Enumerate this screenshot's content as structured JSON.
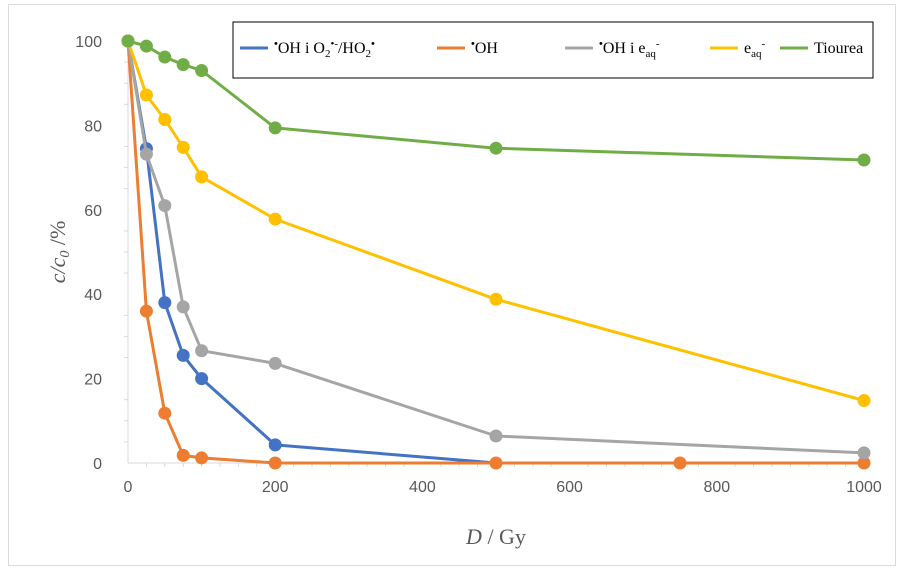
{
  "chart_data": {
    "type": "line",
    "xlabel": {
      "var": "D",
      "rest": " / Gy"
    },
    "ylabel": {
      "var": "c/c",
      "sub": "0",
      "rest": " /%"
    },
    "xlim": [
      0,
      1000
    ],
    "ylim": [
      0,
      100
    ],
    "x_ticks": [
      "0",
      "200",
      "400",
      "600",
      "800",
      "1000"
    ],
    "y_ticks": [
      "0",
      "20",
      "40",
      "60",
      "80",
      "100"
    ],
    "x_tick_values": [
      0,
      200,
      400,
      600,
      800,
      1000
    ],
    "y_tick_values": [
      0,
      20,
      40,
      60,
      80,
      100
    ],
    "grid": false,
    "legend_position": "top-right",
    "series": [
      {
        "name": "•OH i O2•-/HO2•",
        "legend": [
          {
            "t": "•",
            "s": "sup"
          },
          {
            "t": "OH i O",
            "s": ""
          },
          {
            "t": "2",
            "s": "sub"
          },
          {
            "t": "•-",
            "s": "sup"
          },
          {
            "t": "/HO",
            "s": ""
          },
          {
            "t": "2",
            "s": "sub"
          },
          {
            "t": "•",
            "s": "sup"
          }
        ],
        "color": "#4472C4",
        "x": [
          0,
          25,
          50,
          75,
          100,
          200,
          500,
          750,
          1000
        ],
        "y": [
          100,
          74.5,
          38,
          25.5,
          20,
          4.3,
          0,
          0,
          0
        ],
        "markers": [
          true,
          true,
          true,
          true,
          true,
          true,
          false,
          false,
          false
        ]
      },
      {
        "name": "•OH",
        "legend": [
          {
            "t": "•",
            "s": "sup"
          },
          {
            "t": "OH",
            "s": ""
          }
        ],
        "color": "#ED7D31",
        "x": [
          0,
          25,
          50,
          75,
          100,
          200,
          500,
          750,
          1000
        ],
        "y": [
          100,
          36,
          11.8,
          1.8,
          1.2,
          0,
          0,
          0,
          0
        ],
        "markers": [
          true,
          true,
          true,
          true,
          true,
          true,
          true,
          true,
          true
        ]
      },
      {
        "name": "•OH i eaq-",
        "legend": [
          {
            "t": "•",
            "s": "sup"
          },
          {
            "t": "OH i e",
            "s": ""
          },
          {
            "t": "aq",
            "s": "sub"
          },
          {
            "t": "-",
            "s": "sup"
          }
        ],
        "color": "#A5A5A5",
        "x": [
          0,
          25,
          50,
          75,
          100,
          200,
          500,
          1000
        ],
        "y": [
          100,
          73.2,
          61,
          37,
          26.6,
          23.6,
          6.4,
          2.4
        ],
        "markers": [
          true,
          true,
          true,
          true,
          true,
          true,
          true,
          true
        ]
      },
      {
        "name": "eaq-",
        "legend": [
          {
            "t": "e",
            "s": ""
          },
          {
            "t": "aq",
            "s": "sub"
          },
          {
            "t": "-",
            "s": "sup"
          }
        ],
        "color": "#FFC000",
        "x": [
          0,
          25,
          50,
          75,
          100,
          200,
          500,
          1000
        ],
        "y": [
          100,
          87.2,
          81.4,
          74.8,
          67.8,
          57.8,
          38.8,
          14.8
        ],
        "markers": [
          true,
          true,
          true,
          true,
          true,
          true,
          true,
          true
        ]
      },
      {
        "name": "Tiourea",
        "legend": [
          {
            "t": "Tiourea",
            "s": ""
          }
        ],
        "color": "#70AD47",
        "x": [
          0,
          25,
          50,
          75,
          100,
          200,
          500,
          1000
        ],
        "y": [
          100,
          98.8,
          96.2,
          94.4,
          93,
          79.4,
          74.6,
          71.8
        ],
        "markers": [
          true,
          true,
          true,
          true,
          true,
          true,
          true,
          true
        ]
      }
    ]
  }
}
